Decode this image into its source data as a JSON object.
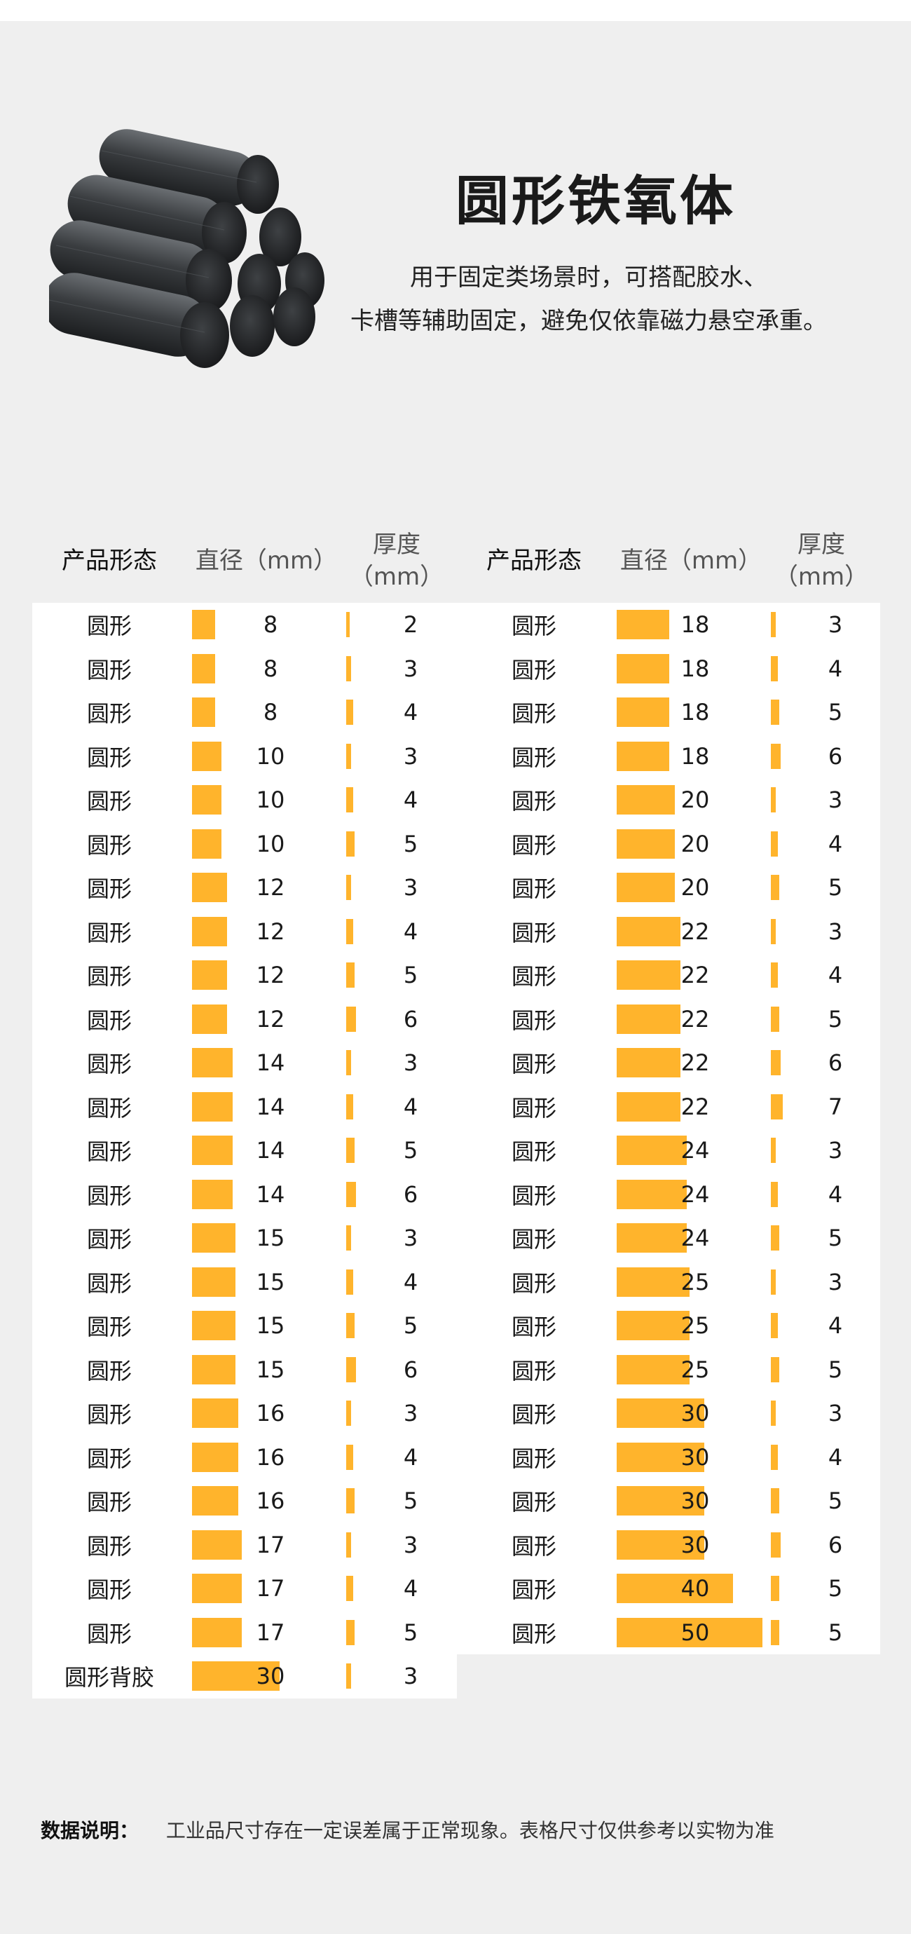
{
  "header": {
    "title": "圆形铁氧体",
    "desc_line1": "用于固定类场景时，可搭配胶水、",
    "desc_line2": "卡槽等辅助固定，避免仅依靠磁力悬空承重。"
  },
  "table": {
    "col_shape": "产品形态",
    "col_diameter": "直径（mm）",
    "col_thickness_l1": "厚度",
    "col_thickness_l2": "（mm）",
    "bar_color": "#FFB42C",
    "left_rows": [
      {
        "shape": "圆形",
        "diameter": 8,
        "thickness": 2
      },
      {
        "shape": "圆形",
        "diameter": 8,
        "thickness": 3
      },
      {
        "shape": "圆形",
        "diameter": 8,
        "thickness": 4
      },
      {
        "shape": "圆形",
        "diameter": 10,
        "thickness": 3
      },
      {
        "shape": "圆形",
        "diameter": 10,
        "thickness": 4
      },
      {
        "shape": "圆形",
        "diameter": 10,
        "thickness": 5
      },
      {
        "shape": "圆形",
        "diameter": 12,
        "thickness": 3
      },
      {
        "shape": "圆形",
        "diameter": 12,
        "thickness": 4
      },
      {
        "shape": "圆形",
        "diameter": 12,
        "thickness": 5
      },
      {
        "shape": "圆形",
        "diameter": 12,
        "thickness": 6
      },
      {
        "shape": "圆形",
        "diameter": 14,
        "thickness": 3
      },
      {
        "shape": "圆形",
        "diameter": 14,
        "thickness": 4
      },
      {
        "shape": "圆形",
        "diameter": 14,
        "thickness": 5
      },
      {
        "shape": "圆形",
        "diameter": 14,
        "thickness": 6
      },
      {
        "shape": "圆形",
        "diameter": 15,
        "thickness": 3
      },
      {
        "shape": "圆形",
        "diameter": 15,
        "thickness": 4
      },
      {
        "shape": "圆形",
        "diameter": 15,
        "thickness": 5
      },
      {
        "shape": "圆形",
        "diameter": 15,
        "thickness": 6
      },
      {
        "shape": "圆形",
        "diameter": 16,
        "thickness": 3
      },
      {
        "shape": "圆形",
        "diameter": 16,
        "thickness": 4
      },
      {
        "shape": "圆形",
        "diameter": 16,
        "thickness": 5
      },
      {
        "shape": "圆形",
        "diameter": 17,
        "thickness": 3
      },
      {
        "shape": "圆形",
        "diameter": 17,
        "thickness": 4
      },
      {
        "shape": "圆形",
        "diameter": 17,
        "thickness": 5
      },
      {
        "shape": "圆形背胶",
        "diameter": 30,
        "thickness": 3
      }
    ],
    "right_rows": [
      {
        "shape": "圆形",
        "diameter": 18,
        "thickness": 3
      },
      {
        "shape": "圆形",
        "diameter": 18,
        "thickness": 4
      },
      {
        "shape": "圆形",
        "diameter": 18,
        "thickness": 5
      },
      {
        "shape": "圆形",
        "diameter": 18,
        "thickness": 6
      },
      {
        "shape": "圆形",
        "diameter": 20,
        "thickness": 3
      },
      {
        "shape": "圆形",
        "diameter": 20,
        "thickness": 4
      },
      {
        "shape": "圆形",
        "diameter": 20,
        "thickness": 5
      },
      {
        "shape": "圆形",
        "diameter": 22,
        "thickness": 3
      },
      {
        "shape": "圆形",
        "diameter": 22,
        "thickness": 4
      },
      {
        "shape": "圆形",
        "diameter": 22,
        "thickness": 5
      },
      {
        "shape": "圆形",
        "diameter": 22,
        "thickness": 6
      },
      {
        "shape": "圆形",
        "diameter": 22,
        "thickness": 7
      },
      {
        "shape": "圆形",
        "diameter": 24,
        "thickness": 3
      },
      {
        "shape": "圆形",
        "diameter": 24,
        "thickness": 4
      },
      {
        "shape": "圆形",
        "diameter": 24,
        "thickness": 5
      },
      {
        "shape": "圆形",
        "diameter": 25,
        "thickness": 3
      },
      {
        "shape": "圆形",
        "diameter": 25,
        "thickness": 4
      },
      {
        "shape": "圆形",
        "diameter": 25,
        "thickness": 5
      },
      {
        "shape": "圆形",
        "diameter": 30,
        "thickness": 3
      },
      {
        "shape": "圆形",
        "diameter": 30,
        "thickness": 4
      },
      {
        "shape": "圆形",
        "diameter": 30,
        "thickness": 5
      },
      {
        "shape": "圆形",
        "diameter": 30,
        "thickness": 6
      },
      {
        "shape": "圆形",
        "diameter": 40,
        "thickness": 5
      },
      {
        "shape": "圆形",
        "diameter": 50,
        "thickness": 5
      }
    ]
  },
  "note": {
    "label": "数据说明：",
    "text": "工业品尺寸存在一定误差属于正常现象。表格尺寸仅供参考以实物为准"
  }
}
